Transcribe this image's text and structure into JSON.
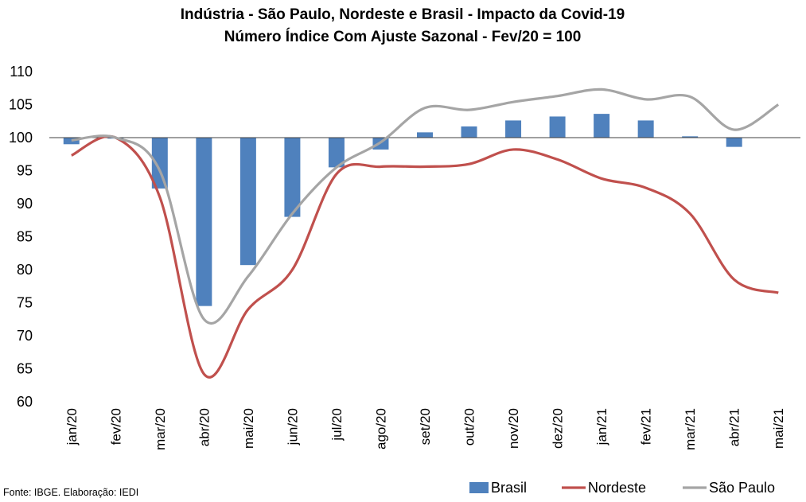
{
  "chart_data": {
    "type": "bar+line",
    "title": "Indústria - São Paulo, Nordeste e Brasil - Impacto da Covid-19",
    "subtitle": "Número Índice Com Ajuste Sazonal - Fev/20 = 100",
    "categories": [
      "jan/20",
      "fev/20",
      "mar/20",
      "abr/20",
      "mai/20",
      "jun/20",
      "jul/20",
      "ago/20",
      "set/20",
      "out/20",
      "nov/20",
      "dez/20",
      "jan/21",
      "fev/21",
      "mar/21",
      "abr/21",
      "mai/21"
    ],
    "ylim": [
      60,
      110
    ],
    "yticks": [
      "60",
      "65",
      "70",
      "75",
      "80",
      "85",
      "90",
      "95",
      "100",
      "105",
      "110"
    ],
    "baseline": 100,
    "grid": false,
    "legend_position": "bottom-right",
    "series": [
      {
        "name": "Brasil",
        "type": "bar",
        "color": "#4f81bd",
        "values": [
          99.0,
          100.0,
          92.3,
          74.5,
          80.7,
          88.0,
          95.5,
          98.2,
          100.8,
          101.7,
          102.6,
          103.2,
          103.6,
          102.6,
          100.2,
          98.6,
          null
        ]
      },
      {
        "name": "Nordeste",
        "type": "line",
        "color": "#c0504d",
        "values": [
          97.3,
          100.0,
          91.0,
          64.2,
          74.0,
          80.0,
          94.5,
          95.6,
          95.6,
          96.0,
          98.2,
          96.7,
          93.8,
          92.4,
          88.5,
          78.5,
          76.5
        ]
      },
      {
        "name": "São Paulo",
        "type": "line",
        "color": "#a5a5a5",
        "values": [
          99.6,
          100.0,
          95.0,
          72.5,
          79.0,
          88.5,
          95.5,
          99.3,
          104.5,
          104.2,
          105.4,
          106.3,
          107.3,
          105.8,
          106.2,
          101.2,
          105.0
        ]
      }
    ],
    "source": "Fonte: IBGE. Elaboração: IEDI"
  }
}
